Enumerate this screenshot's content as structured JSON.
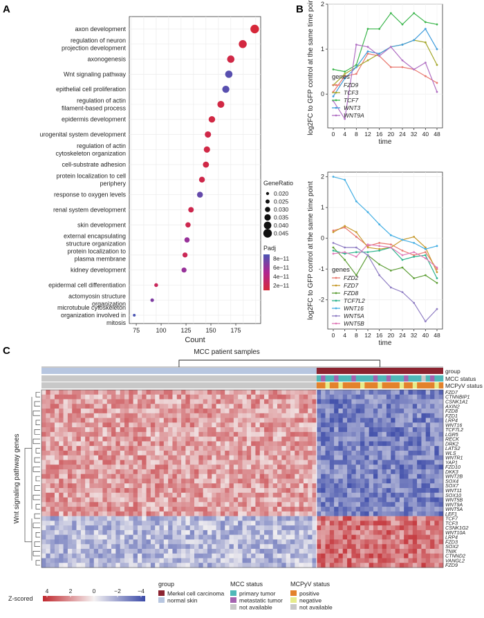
{
  "panel_labels": {
    "a": "A",
    "b": "B",
    "c": "C"
  },
  "chart_data": [
    {
      "type": "scatter",
      "panel": "A",
      "xlabel": "Count",
      "xlim": [
        68,
        200
      ],
      "xticks": [
        75,
        100,
        125,
        150,
        175
      ],
      "terms": [
        {
          "label": "axon development",
          "count": 194,
          "ratio": 0.046,
          "padj": 1.5e-11
        },
        {
          "label": "regulation of neuron\nprojection development",
          "count": 182,
          "ratio": 0.043,
          "padj": 1.8e-11
        },
        {
          "label": "axonogenesis",
          "count": 170,
          "ratio": 0.04,
          "padj": 2.1e-11
        },
        {
          "label": "Wnt signaling pathway",
          "count": 168,
          "ratio": 0.04,
          "padj": 9e-11
        },
        {
          "label": "epithelial cell proliferation",
          "count": 165,
          "ratio": 0.039,
          "padj": 9e-11
        },
        {
          "label": "regulation of actin\nfilament-based process",
          "count": 160,
          "ratio": 0.038,
          "padj": 2e-11
        },
        {
          "label": "epidermis development",
          "count": 151,
          "ratio": 0.036,
          "padj": 2e-11
        },
        {
          "label": "urogenital system development",
          "count": 147,
          "ratio": 0.035,
          "padj": 2.2e-11
        },
        {
          "label": "regulation of actin\ncytoskeleton organization",
          "count": 146,
          "ratio": 0.035,
          "padj": 2.1e-11
        },
        {
          "label": "cell-substrate adhesion",
          "count": 145,
          "ratio": 0.034,
          "padj": 2.1e-11
        },
        {
          "label": "protein localization to cell\nperiphery",
          "count": 141,
          "ratio": 0.033,
          "padj": 2.3e-11
        },
        {
          "label": "response to oxygen levels",
          "count": 139,
          "ratio": 0.033,
          "padj": 8.5e-11
        },
        {
          "label": "renal system development",
          "count": 130,
          "ratio": 0.031,
          "padj": 2.4e-11
        },
        {
          "label": "skin development",
          "count": 127,
          "ratio": 0.03,
          "padj": 2.5e-11
        },
        {
          "label": "external encapsulating\nstructure organization",
          "count": 126,
          "ratio": 0.03,
          "padj": 6.5e-11
        },
        {
          "label": "protein localization to\nplasma membrane",
          "count": 124,
          "ratio": 0.029,
          "padj": 2.8e-11
        },
        {
          "label": "kidney development",
          "count": 123,
          "ratio": 0.029,
          "padj": 6.5e-11
        },
        {
          "label": "epidermal cell differentiation",
          "count": 95,
          "ratio": 0.023,
          "padj": 3e-11
        },
        {
          "label": "actomyosin structure\norganization",
          "count": 91,
          "ratio": 0.022,
          "padj": 7.5e-11
        },
        {
          "label": "microtubule cytoskeleton\norganization involved in\nmitosis",
          "count": 73,
          "ratio": 0.018,
          "padj": 9.5e-11
        }
      ],
      "legend": {
        "size_title": "GeneRatio",
        "size_values": [
          "0.020",
          "0.025",
          "0.030",
          "0.035",
          "0.040",
          "0.045"
        ],
        "color_title": "Padj",
        "color_ticks": [
          "8e−11",
          "6e−11",
          "4e−11",
          "2e−11"
        ]
      }
    },
    {
      "type": "line",
      "panel": "B-top",
      "xlabel": "time",
      "ylabel": "log2FC to GFP control at the same time point",
      "x": [
        0,
        4,
        8,
        12,
        16,
        20,
        24,
        32,
        40,
        48
      ],
      "ylim": [
        -0.75,
        2.0
      ],
      "yticks": [
        0,
        1,
        2
      ],
      "legend_title": "genes",
      "series": [
        {
          "name": "FZD9",
          "color": "#e8766d",
          "values": [
            0.05,
            0.4,
            0.45,
            0.9,
            0.85,
            0.6,
            0.6,
            0.55,
            0.4,
            0.25
          ]
        },
        {
          "name": "TCF3",
          "color": "#a3a629",
          "values": [
            0.2,
            0.45,
            0.6,
            0.75,
            0.9,
            1.05,
            1.1,
            1.2,
            1.15,
            0.65
          ]
        },
        {
          "name": "TCF7",
          "color": "#39b54a",
          "values": [
            0.55,
            0.5,
            0.65,
            1.45,
            1.45,
            1.8,
            1.55,
            1.8,
            1.6,
            1.55
          ]
        },
        {
          "name": "WNT3",
          "color": "#3d9bdc",
          "values": [
            -0.05,
            0.35,
            0.6,
            0.95,
            0.9,
            1.05,
            1.1,
            1.2,
            1.45,
            1.0
          ]
        },
        {
          "name": "WNT9A",
          "color": "#b06fc3",
          "values": [
            -0.15,
            -0.55,
            1.1,
            1.05,
            0.85,
            1.05,
            0.75,
            0.55,
            0.7,
            0.05
          ]
        }
      ]
    },
    {
      "type": "line",
      "panel": "B-bottom",
      "xlabel": "time",
      "ylabel": "log2FC to GFP control at the same time point",
      "x": [
        0,
        4,
        8,
        12,
        16,
        20,
        24,
        32,
        40,
        48
      ],
      "ylim": [
        -2.95,
        2.15
      ],
      "yticks": [
        -2,
        -1,
        0,
        1,
        2
      ],
      "legend_title": "genes",
      "series": [
        {
          "name": "FZD2",
          "color": "#e8766d",
          "values": [
            0.25,
            0.35,
            0.05,
            -0.25,
            -0.15,
            -0.2,
            -0.4,
            -0.55,
            -0.45,
            -1.0
          ]
        },
        {
          "name": "FZD7",
          "color": "#c79a2d",
          "values": [
            0.2,
            0.4,
            0.2,
            -0.3,
            -0.35,
            -0.3,
            -0.05,
            0.05,
            -0.3,
            -1.1
          ]
        },
        {
          "name": "FZD8",
          "color": "#5d9e35",
          "values": [
            -0.3,
            -0.7,
            -1.2,
            -0.55,
            -0.85,
            -1.05,
            -0.95,
            -1.3,
            -1.2,
            -1.45
          ]
        },
        {
          "name": "TCF7L2",
          "color": "#2bb38c",
          "values": [
            -0.4,
            -0.5,
            -0.45,
            -0.45,
            -0.4,
            -0.3,
            -0.7,
            -0.6,
            -0.55,
            -1.3
          ]
        },
        {
          "name": "WNT16",
          "color": "#42aee3",
          "values": [
            2.0,
            1.9,
            1.2,
            0.85,
            0.45,
            0.1,
            -0.05,
            -0.15,
            -0.35,
            -0.25
          ]
        },
        {
          "name": "WNT5A",
          "color": "#8e7cc3",
          "values": [
            -0.15,
            -0.3,
            -0.3,
            -0.55,
            -1.2,
            -1.6,
            -1.75,
            -2.1,
            -2.7,
            -2.3
          ]
        },
        {
          "name": "WNT5B",
          "color": "#e07bb8",
          "values": [
            -0.5,
            -0.45,
            -0.6,
            -0.2,
            -0.25,
            -0.3,
            -0.55,
            -0.45,
            -0.65,
            -0.95
          ]
        }
      ]
    },
    {
      "type": "heatmap",
      "panel": "C",
      "title": "MCC patient samples",
      "ylabel": "Wnt signaling pathway genes",
      "n_normal": 63,
      "n_mcc": 29,
      "track_labels": [
        "group",
        "MCC status",
        "MCPyV status"
      ],
      "genes": [
        "FZD7",
        "CTNNBIP1",
        "CSNK1A1",
        "AXIN2",
        "FZD8",
        "FZD1",
        "LRP4",
        "WNT16",
        "TCF7L2",
        "LGR5",
        "RECK",
        "DRK2",
        "LATS2",
        "WLS",
        "WNTR1",
        "YAP1",
        "FZD10",
        "DKK3",
        "WNT2B",
        "SOX4",
        "SOX7",
        "WNT11",
        "SOX10",
        "WNT5B",
        "WNT9A",
        "WNT5A",
        "LEF1",
        "TCF7",
        "TCF3",
        "CSNK1G2",
        "WNT10A",
        "LRP4",
        "FZD3",
        "SOX2",
        "TNIK",
        "CTNND2",
        "VANGL2",
        "FZD9"
      ],
      "n_up_in_normal": 27,
      "colorbar": {
        "title": "Z-scored",
        "ticks": [
          "4",
          "2",
          "0",
          "−2",
          "−4"
        ],
        "low": "#3b4aa8",
        "mid": "#f5f2f2",
        "high": "#c0272d"
      },
      "legend": [
        {
          "title": "group",
          "items": [
            {
              "label": "Merkel cell carcinoma",
              "color": "#8b2330"
            },
            {
              "label": "normal skin",
              "color": "#b7c6e0"
            }
          ]
        },
        {
          "title": "MCC status",
          "items": [
            {
              "label": "primary tumor",
              "color": "#4fb8b8"
            },
            {
              "label": "metastatic tumor",
              "color": "#a463b0"
            },
            {
              "label": "not available",
              "color": "#c8c8c8"
            }
          ]
        },
        {
          "title": "MCPyV status",
          "items": [
            {
              "label": "positive",
              "color": "#e3822c"
            },
            {
              "label": "negative",
              "color": "#e6ec8c"
            },
            {
              "label": "not available",
              "color": "#c8c8c8"
            }
          ]
        }
      ]
    }
  ]
}
